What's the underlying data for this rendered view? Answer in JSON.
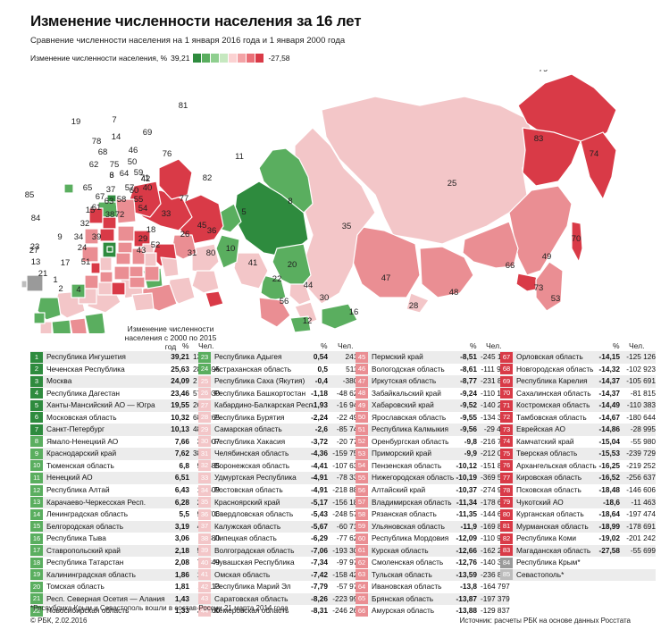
{
  "title": "Изменение численности населения за 16 лет",
  "subtitle": "Сравнение численности населения на 1 января 2016 года и 1 января 2000 года",
  "legend": {
    "label": "Изменение численности населения, %",
    "max": "39,21",
    "min": "-27,58",
    "colors": [
      "#2e8b3e",
      "#5aae5f",
      "#8fcf8f",
      "#c6e8c0",
      "#fbd2d2",
      "#f3a3a6",
      "#ea6f77",
      "#d93a47"
    ]
  },
  "table_header": {
    "group_label": "Изменение численности населения с 2000 по 2015 год",
    "pct_label": "%",
    "people_label": "Чел."
  },
  "regions": [
    {
      "n": "1",
      "name": "Республика Ингушетия",
      "pct": "39,21",
      "people": "133 312",
      "color": "#2e8b3e"
    },
    {
      "n": "2",
      "name": "Чеченская Республика",
      "pct": "25,63",
      "people": "284 596",
      "color": "#2e8b3e"
    },
    {
      "n": "3",
      "name": "Москва",
      "pct": "24,09",
      "people": "2 392 455",
      "color": "#2e8b3e"
    },
    {
      "n": "4",
      "name": "Республика Дагестан",
      "pct": "23,46",
      "people": "573 030",
      "color": "#2e8b3e"
    },
    {
      "n": "5",
      "name": "Ханты-Мансийский АО — Югра",
      "pct": "19,55",
      "people": "265 855",
      "color": "#2e8b3e"
    },
    {
      "n": "6",
      "name": "Московская область",
      "pct": "10,32",
      "people": "684 265",
      "color": "#2e8b3e"
    },
    {
      "n": "7",
      "name": "Санкт-Петербург",
      "pct": "10,13",
      "people": "480 424",
      "color": "#2e8b3e"
    },
    {
      "n": "8",
      "name": "Ямало-Ненецкий АО",
      "pct": "7,66",
      "people": "38 007",
      "color": "#5aae5f"
    },
    {
      "n": "9",
      "name": "Краснодарский край",
      "pct": "7,62",
      "people": "380 801",
      "color": "#5aae5f"
    },
    {
      "n": "10",
      "name": "Тюменская область",
      "pct": "6,8",
      "people": "92 585",
      "color": "#5aae5f"
    },
    {
      "n": "11",
      "name": "Ненецкий АО",
      "pct": "6,51",
      "people": "2681",
      "color": "#5aae5f"
    },
    {
      "n": "12",
      "name": "Республика Алтай",
      "pct": "6,43",
      "people": "12 609",
      "color": "#5aae5f"
    },
    {
      "n": "13",
      "name": "Карачаево-Черкесская Респ.",
      "pct": "6,28",
      "people": "27 636",
      "color": "#5aae5f"
    },
    {
      "n": "14",
      "name": "Ленинградская область",
      "pct": "5,5",
      "people": "92 706",
      "color": "#5aae5f"
    },
    {
      "n": "15",
      "name": "Белгородская область",
      "pct": "3,19",
      "people": "47 882",
      "color": "#5aae5f"
    },
    {
      "n": "16",
      "name": "Республика Тыва",
      "pct": "3,06",
      "people": "9380",
      "color": "#5aae5f"
    },
    {
      "n": "17",
      "name": "Ставропольский край",
      "pct": "2,18",
      "people": "59 624",
      "color": "#5aae5f"
    },
    {
      "n": "18",
      "name": "Республика Татарстан",
      "pct": "2,08",
      "people": "78 849",
      "color": "#5aae5f"
    },
    {
      "n": "19",
      "name": "Калининградская область",
      "pct": "1,86",
      "people": "17 787",
      "color": "#5aae5f"
    },
    {
      "n": "20",
      "name": "Томская область",
      "pct": "1,81",
      "people": "19 113",
      "color": "#5aae5f"
    },
    {
      "n": "21",
      "name": "Респ. Северная Осетия — Алания",
      "pct": "1,43",
      "people": "9906",
      "color": "#5aae5f"
    },
    {
      "n": "22",
      "name": "Новосибирская область",
      "pct": "1,33",
      "people": "36 160",
      "color": "#5aae5f"
    },
    {
      "n": "23",
      "name": "Республика Адыгея",
      "pct": "0,54",
      "people": "2419",
      "color": "#5aae5f"
    },
    {
      "n": "24",
      "name": "Астраханская область",
      "pct": "0,5",
      "people": "5110",
      "color": "#5aae5f"
    },
    {
      "n": "25",
      "name": "Республика Саха (Якутия)",
      "pct": "-0,4",
      "people": "-3809",
      "color": "#f3c6c8"
    },
    {
      "n": "26",
      "name": "Республика Башкортостан",
      "pct": "-1,18",
      "people": "-48 629",
      "color": "#f3c6c8"
    },
    {
      "n": "27",
      "name": "Кабардино-Балкарская Респ.",
      "pct": "-1,93",
      "people": "-16 940",
      "color": "#f3c6c8"
    },
    {
      "n": "28",
      "name": "Республика Бурятия",
      "pct": "-2,24",
      "people": "-22 494",
      "color": "#f3c6c8"
    },
    {
      "n": "29",
      "name": "Самарская область",
      "pct": "-2,6",
      "people": "-85 740",
      "color": "#f3c6c8"
    },
    {
      "n": "30",
      "name": "Республика Хакасия",
      "pct": "-3,72",
      "people": "-20 773",
      "color": "#f3c6c8"
    },
    {
      "n": "31",
      "name": "Челябинская область",
      "pct": "-4,36",
      "people": "-159 751",
      "color": "#f3c6c8"
    },
    {
      "n": "32",
      "name": "Воронежская область",
      "pct": "-4,41",
      "people": "-107 633",
      "color": "#f3c6c8"
    },
    {
      "n": "33",
      "name": "Удмуртская Республика",
      "pct": "-4,91",
      "people": "-78 334",
      "color": "#f3c6c8"
    },
    {
      "n": "34",
      "name": "Ростовская область",
      "pct": "-4,91",
      "people": "-218 886",
      "color": "#f3c6c8"
    },
    {
      "n": "35",
      "name": "Красноярский край",
      "pct": "-5,17",
      "people": "-156 184",
      "color": "#f3c6c8"
    },
    {
      "n": "36",
      "name": "Свердловская область",
      "pct": "-5,43",
      "people": "-248 573",
      "color": "#f3c6c8"
    },
    {
      "n": "37",
      "name": "Калужская область",
      "pct": "-5,67",
      "people": "-60 714",
      "color": "#f3c6c8"
    },
    {
      "n": "38",
      "name": "Липецкая область",
      "pct": "-6,29",
      "people": "-77 624",
      "color": "#f3c6c8"
    },
    {
      "n": "39",
      "name": "Волгоградская область",
      "pct": "-7,06",
      "people": "-193 304",
      "color": "#f3c6c8"
    },
    {
      "n": "40",
      "name": "Чувашская Республика",
      "pct": "-7,34",
      "people": "-97 972",
      "color": "#f3c6c8"
    },
    {
      "n": "41",
      "name": "Омская область",
      "pct": "-7,42",
      "people": "-158 428",
      "color": "#f3c6c8"
    },
    {
      "n": "42",
      "name": "Республика Марий Эл",
      "pct": "-7,79",
      "people": "-57 976",
      "color": "#f3c6c8"
    },
    {
      "n": "43",
      "name": "Саратовская область",
      "pct": "-8,26",
      "people": "-223 991",
      "color": "#f3c6c8"
    },
    {
      "n": "44",
      "name": "Кемеровская область",
      "pct": "-8,31",
      "people": "-246 263",
      "color": "#f3c6c8"
    },
    {
      "n": "45",
      "name": "Пермский край",
      "pct": "-8,51",
      "people": "-245 129",
      "color": "#ea8e93"
    },
    {
      "n": "46",
      "name": "Вологодская область",
      "pct": "-8,61",
      "people": "-111 951",
      "color": "#ea8e93"
    },
    {
      "n": "47",
      "name": "Иркутская область",
      "pct": "-8,77",
      "people": "-231 884",
      "color": "#ea8e93"
    },
    {
      "n": "48",
      "name": "Забайкальский край",
      "pct": "-9,24",
      "people": "-110 186",
      "color": "#ea8e93"
    },
    {
      "n": "49",
      "name": "Хабаровский край",
      "pct": "-9,52",
      "people": "-140 266",
      "color": "#ea8e93"
    },
    {
      "n": "50",
      "name": "Ярославская область",
      "pct": "-9,55",
      "people": "-134 310",
      "color": "#ea8e93"
    },
    {
      "n": "51",
      "name": "Республика Калмыкия",
      "pct": "-9,56",
      "people": "-29 492",
      "color": "#ea8e93"
    },
    {
      "n": "52",
      "name": "Оренбургская область",
      "pct": "-9,8",
      "people": "-216 769",
      "color": "#ea8e93"
    },
    {
      "n": "53",
      "name": "Приморский край",
      "pct": "-9,9",
      "people": "-212 063",
      "color": "#ea8e93"
    },
    {
      "n": "54",
      "name": "Пензенская область",
      "pct": "-10,12",
      "people": "-151 814",
      "color": "#ea8e93"
    },
    {
      "n": "55",
      "name": "Нижегородская область",
      "pct": "-10,19",
      "people": "-369 577",
      "color": "#ea8e93"
    },
    {
      "n": "56",
      "name": "Алтайский край",
      "pct": "-10,37",
      "people": "-274 968",
      "color": "#ea8e93"
    },
    {
      "n": "57",
      "name": "Владимирская область",
      "pct": "-11,34",
      "people": "-178 604",
      "color": "#ea8e93"
    },
    {
      "n": "58",
      "name": "Рязанская область",
      "pct": "-11,35",
      "people": "-144 674",
      "color": "#ea8e93"
    },
    {
      "n": "59",
      "name": "Ульяновская область",
      "pct": "-11,9",
      "people": "-169 843",
      "color": "#ea8e93"
    },
    {
      "n": "60",
      "name": "Республика Мордовия",
      "pct": "-12,09",
      "people": "-110 999",
      "color": "#ea8e93"
    },
    {
      "n": "61",
      "name": "Курская область",
      "pct": "-12,66",
      "people": "-162 225",
      "color": "#ea8e93"
    },
    {
      "n": "62",
      "name": "Смоленская область",
      "pct": "-12,76",
      "people": "-140 301",
      "color": "#ea8e93"
    },
    {
      "n": "63",
      "name": "Тульская область",
      "pct": "-13,59",
      "people": "-236 885",
      "color": "#ea8e93"
    },
    {
      "n": "64",
      "name": "Ивановская область",
      "pct": "-13,8",
      "people": "-164 797",
      "color": "#ea8e93"
    },
    {
      "n": "65",
      "name": "Брянская область",
      "pct": "-13,87",
      "people": "-197 379",
      "color": "#ea8e93"
    },
    {
      "n": "66",
      "name": "Амурская область",
      "pct": "-13,88",
      "people": "-129 837",
      "color": "#ea8e93"
    },
    {
      "n": "67",
      "name": "Орловская область",
      "pct": "-14,15",
      "people": "-125 126",
      "color": "#d93a47"
    },
    {
      "n": "68",
      "name": "Новгородская область",
      "pct": "-14,32",
      "people": "-102 923",
      "color": "#d93a47"
    },
    {
      "n": "69",
      "name": "Республика Карелия",
      "pct": "-14,37",
      "people": "-105 691",
      "color": "#d93a47"
    },
    {
      "n": "70",
      "name": "Сахалинская область",
      "pct": "-14,37",
      "people": "-81 815",
      "color": "#d93a47"
    },
    {
      "n": "71",
      "name": "Костромская область",
      "pct": "-14,49",
      "people": "-110 383",
      "color": "#d93a47"
    },
    {
      "n": "72",
      "name": "Тамбовская область",
      "pct": "-14,67",
      "people": "-180 644",
      "color": "#d93a47"
    },
    {
      "n": "73",
      "name": "Еврейская АО",
      "pct": "-14,86",
      "people": "-28 995",
      "color": "#d93a47"
    },
    {
      "n": "74",
      "name": "Камчатский край",
      "pct": "-15,04",
      "people": "-55 980",
      "color": "#d93a47"
    },
    {
      "n": "75",
      "name": "Тверская область",
      "pct": "-15,53",
      "people": "-239 729",
      "color": "#d93a47"
    },
    {
      "n": "76",
      "name": "Архангельская область",
      "pct": "-16,25",
      "people": "-219 252",
      "color": "#d93a47"
    },
    {
      "n": "77",
      "name": "Кировская область",
      "pct": "-16,52",
      "people": "-256 637",
      "color": "#d93a47"
    },
    {
      "n": "78",
      "name": "Псковская область",
      "pct": "-18,48",
      "people": "-146 606",
      "color": "#d93a47"
    },
    {
      "n": "79",
      "name": "Чукотский АО",
      "pct": "-18,6",
      "people": "-11 463",
      "color": "#d93a47"
    },
    {
      "n": "80",
      "name": "Курганская область",
      "pct": "-18,64",
      "people": "-197 474",
      "color": "#d93a47"
    },
    {
      "n": "81",
      "name": "Мурманская область",
      "pct": "-18,99",
      "people": "-178 691",
      "color": "#d93a47"
    },
    {
      "n": "82",
      "name": "Республика Коми",
      "pct": "-19,02",
      "people": "-201 242",
      "color": "#d93a47"
    },
    {
      "n": "83",
      "name": "Магаданская область",
      "pct": "-27,58",
      "people": "-55 699",
      "color": "#d93a47"
    },
    {
      "n": "84",
      "name": "Республика Крым*",
      "pct": "",
      "people": "",
      "color": "#9a9a9a"
    },
    {
      "n": "85",
      "name": "Севастополь*",
      "pct": "",
      "people": "",
      "color": "#bdbdbd"
    }
  ],
  "footnote": "*Республика Крым и Севастополь вошли в состав России 21 марта 2014 года",
  "copyright": "© РБК, 2.02.2016",
  "source": "Источник: расчеты РБК на основе данных Росстата"
}
